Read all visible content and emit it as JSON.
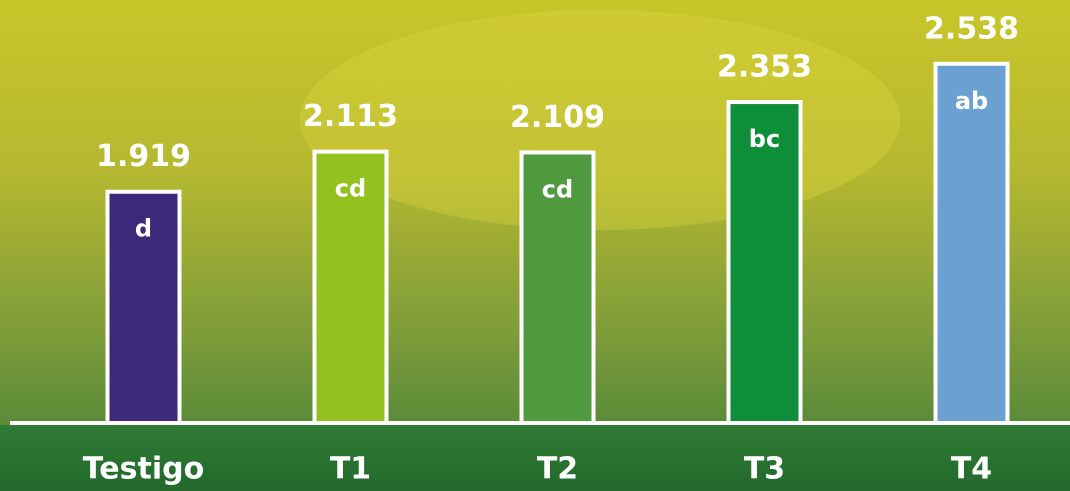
{
  "chart_data": {
    "type": "bar",
    "categories": [
      "Testigo",
      "T1",
      "T2",
      "T3",
      "T4"
    ],
    "values": [
      1.919,
      2.113,
      2.109,
      2.353,
      2.538
    ],
    "letters": [
      "d",
      "cd",
      "cd",
      "bc",
      "ab"
    ],
    "colors": [
      "#3b2a7a",
      "#93c11f",
      "#4f9a3f",
      "#0f8e3a",
      "#6aa0d2"
    ],
    "ylim": [
      0.8,
      2.6
    ]
  }
}
